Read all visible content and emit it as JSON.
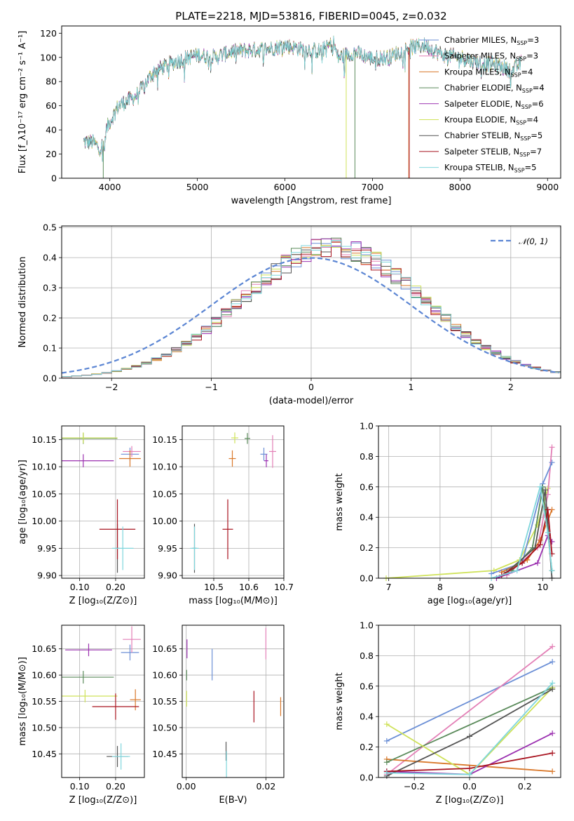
{
  "chart_data": [
    {
      "id": "spectrum",
      "type": "line",
      "title": "PLATE=2218, MJD=53816, FIBERID=0045, z=0.032",
      "xlabel": "wavelength [Angstrom, rest frame]",
      "ylabel": "Flux [f_λ10⁻¹⁷ erg cm⁻² s⁻¹ A⁻¹]",
      "xlim": [
        3450,
        9150
      ],
      "ylim": [
        0,
        126
      ],
      "xticks": [
        4000,
        5000,
        6000,
        7000,
        8000,
        9000
      ],
      "yticks": [
        0,
        20,
        40,
        60,
        80,
        100,
        120
      ],
      "grid": false,
      "legend_position": "right",
      "series": [
        {
          "name": "Chabrier MILES, N_SSP=3",
          "color": "#6b8fd6"
        },
        {
          "name": "Salpeter MILES, N_SSP=3",
          "color": "#e37fb6"
        },
        {
          "name": "Kroupa MILES, N_SSP=4",
          "color": "#d9782a"
        },
        {
          "name": "Chabrier ELODIE, N_SSP=4",
          "color": "#5a8a5a"
        },
        {
          "name": "Salpeter ELODIE, N_SSP=6",
          "color": "#9b30b0"
        },
        {
          "name": "Kroupa ELODIE, N_SSP=4",
          "color": "#cfe25a"
        },
        {
          "name": "Chabrier STELIB, N_SSP=5",
          "color": "#555555"
        },
        {
          "name": "Salpeter STELIB, N_SSP=7",
          "color": "#a8131f"
        },
        {
          "name": "Kroupa STELIB, N_SSP=5",
          "color": "#7fd6dc"
        }
      ],
      "continuum": {
        "x": [
          3700,
          3800,
          3900,
          3950,
          4000,
          4100,
          4200,
          4300,
          4400,
          4500,
          4700,
          4900,
          5000,
          5200,
          5400,
          5600,
          5800,
          6000,
          6200,
          6400,
          6560,
          6600,
          6800,
          7000,
          7200,
          7400,
          7600,
          7800,
          8000,
          8200,
          8400,
          8600,
          8700
        ],
        "y": [
          30,
          30,
          24,
          38,
          47,
          60,
          64,
          68,
          78,
          88,
          95,
          100,
          102,
          100,
          105,
          106,
          107,
          110,
          107,
          105,
          112,
          100,
          104,
          99,
          100,
          108,
          110,
          102,
          100,
          96,
          94,
          89,
          96
        ]
      }
    },
    {
      "id": "residuals",
      "type": "line",
      "xlabel": "(data-model)/error",
      "ylabel": "Normed distribution",
      "xlim": [
        -2.5,
        2.5
      ],
      "ylim": [
        0,
        0.505
      ],
      "xticks": [
        -2,
        -1,
        0,
        1,
        2
      ],
      "yticks": [
        0.0,
        0.1,
        0.2,
        0.3,
        0.4,
        0.5
      ],
      "grid": true,
      "legend_position": "top-right",
      "reference": {
        "name": "𝒩(0, 1)",
        "mu": 0,
        "sigma": 1,
        "color": "#5b85d3"
      },
      "hist_shape": {
        "mu": 0.22,
        "sigma": 0.9,
        "bin_width": 0.1
      }
    },
    {
      "id": "age-vs-z",
      "type": "scatter",
      "xlabel": "Z [log₁₀(Z/Z⊙)]",
      "ylabel": "age  [log₁₀(age/yr)]",
      "xlim": [
        0.05,
        0.28
      ],
      "ylim": [
        9.895,
        10.175
      ],
      "xticks": [
        0.1,
        0.2
      ],
      "yticks": [
        9.9,
        9.95,
        10.0,
        10.05,
        10.1,
        10.15
      ],
      "grid": true,
      "points": [
        {
          "color": "#6b8fd6",
          "x": 0.24,
          "xerr": 0.025,
          "y": 10.123,
          "yerr": 0.012
        },
        {
          "color": "#e37fb6",
          "x": 0.245,
          "xerr": 0.025,
          "y": 10.128,
          "yerr": 0.01
        },
        {
          "color": "#d9782a",
          "x": 0.24,
          "xerr": 0.03,
          "y": 10.115,
          "yerr": 0.015
        },
        {
          "color": "#5a8a5a",
          "x": 0.11,
          "xerr": 0.095,
          "y": 10.152,
          "yerr": 0.01
        },
        {
          "color": "#9b30b0",
          "x": 0.11,
          "xerr": 0.085,
          "y": 10.111,
          "yerr": 0.012
        },
        {
          "color": "#cfe25a",
          "x": 0.11,
          "xerr": 0.095,
          "y": 10.153,
          "yerr": 0.01
        },
        {
          "color": "#555555",
          "x": 0.205,
          "xerr": 0.005,
          "y": 9.95,
          "yerr": 0.045
        },
        {
          "color": "#a8131f",
          "x": 0.205,
          "xerr": 0.05,
          "y": 9.985,
          "yerr": 0.055
        },
        {
          "color": "#7fd6dc",
          "x": 0.22,
          "xerr": 0.03,
          "y": 9.95,
          "yerr": 0.04
        }
      ]
    },
    {
      "id": "age-vs-mass",
      "type": "scatter",
      "xlabel": "mass [log₁₀(M/M⊙)]",
      "ylabel": "",
      "xlim": [
        10.41,
        10.7
      ],
      "ylim": [
        9.895,
        10.175
      ],
      "xticks": [
        10.5,
        10.6,
        10.7
      ],
      "xticklabels": [
        "10.5",
        "10.6",
        "10.7"
      ],
      "yticks": [
        9.9,
        9.95,
        10.0,
        10.05,
        10.1,
        10.15
      ],
      "grid": true,
      "points": [
        {
          "color": "#6b8fd6",
          "x": 10.643,
          "xerr": 0.01,
          "y": 10.123,
          "yerr": 0.012
        },
        {
          "color": "#e37fb6",
          "x": 10.668,
          "xerr": 0.01,
          "y": 10.128,
          "yerr": 0.03
        },
        {
          "color": "#d9782a",
          "x": 10.553,
          "xerr": 0.01,
          "y": 10.115,
          "yerr": 0.015
        },
        {
          "color": "#5a8a5a",
          "x": 10.596,
          "xerr": 0.008,
          "y": 10.152,
          "yerr": 0.01
        },
        {
          "color": "#9b30b0",
          "x": 10.65,
          "xerr": 0.006,
          "y": 10.111,
          "yerr": 0.012
        },
        {
          "color": "#cfe25a",
          "x": 10.56,
          "xerr": 0.01,
          "y": 10.153,
          "yerr": 0.01
        },
        {
          "color": "#555555",
          "x": 10.445,
          "xerr": 0.006,
          "y": 9.95,
          "yerr": 0.045
        },
        {
          "color": "#a8131f",
          "x": 10.54,
          "xerr": 0.015,
          "y": 9.985,
          "yerr": 0.055
        },
        {
          "color": "#7fd6dc",
          "x": 10.445,
          "xerr": 0.012,
          "y": 9.95,
          "yerr": 0.04
        }
      ]
    },
    {
      "id": "mass-weight-vs-age",
      "type": "line",
      "xlabel": "age  [log₁₀(age/yr)]",
      "ylabel": "mass weight",
      "xlim": [
        6.8,
        10.35
      ],
      "ylim": [
        0,
        1
      ],
      "xticks": [
        7,
        8,
        9,
        10
      ],
      "yticks": [
        0.0,
        0.2,
        0.4,
        0.6,
        0.8,
        1.0
      ],
      "grid": true,
      "series": [
        {
          "color": "#cfe25a",
          "x": [
            6.95,
            9.05,
            9.55,
            9.9,
            10.1
          ],
          "y": [
            0.0,
            0.05,
            0.12,
            0.35,
            0.59
          ]
        },
        {
          "color": "#e37fb6",
          "x": [
            9.3,
            9.9,
            10.1,
            10.18
          ],
          "y": [
            0.02,
            0.2,
            0.55,
            0.86
          ]
        },
        {
          "color": "#6b8fd6",
          "x": [
            9.0,
            9.6,
            10.0,
            10.18
          ],
          "y": [
            0.03,
            0.1,
            0.62,
            0.76
          ]
        },
        {
          "color": "#d9782a",
          "x": [
            9.2,
            9.7,
            9.95,
            10.18
          ],
          "y": [
            0.04,
            0.12,
            0.25,
            0.45
          ]
        },
        {
          "color": "#5a8a5a",
          "x": [
            9.4,
            9.8,
            10.0,
            10.18
          ],
          "y": [
            0.05,
            0.2,
            0.6,
            0.05
          ]
        },
        {
          "color": "#9b30b0",
          "x": [
            9.1,
            9.9,
            10.1,
            10.18
          ],
          "y": [
            0.0,
            0.1,
            0.28,
            0.24
          ]
        },
        {
          "color": "#555555",
          "x": [
            9.3,
            9.85,
            10.05,
            10.18
          ],
          "y": [
            0.04,
            0.2,
            0.58,
            0.0
          ]
        },
        {
          "color": "#a8131f",
          "x": [
            9.2,
            9.6,
            9.95,
            10.1,
            10.18
          ],
          "y": [
            0.02,
            0.1,
            0.22,
            0.45,
            0.16
          ]
        },
        {
          "color": "#7fd6dc",
          "x": [
            9.0,
            9.5,
            9.95,
            10.1,
            10.18
          ],
          "y": [
            0.0,
            0.05,
            0.6,
            0.3,
            0.05
          ]
        }
      ]
    },
    {
      "id": "mass-vs-z",
      "type": "scatter",
      "xlabel": "Z [log₁₀(Z/Z⊙)]",
      "ylabel": "mass [log₁₀(M/M⊙)]",
      "xlim": [
        0.05,
        0.28
      ],
      "ylim": [
        10.405,
        10.695
      ],
      "xticks": [
        0.1,
        0.2
      ],
      "yticks": [
        10.45,
        10.5,
        10.55,
        10.6,
        10.65
      ],
      "grid": true,
      "points": [
        {
          "color": "#6b8fd6",
          "x": 0.24,
          "xerr": 0.025,
          "y": 10.643,
          "yerr": 0.015
        },
        {
          "color": "#e37fb6",
          "x": 0.245,
          "xerr": 0.025,
          "y": 10.668,
          "yerr": 0.025
        },
        {
          "color": "#d9782a",
          "x": 0.255,
          "xerr": 0.015,
          "y": 10.553,
          "yerr": 0.02
        },
        {
          "color": "#5a8a5a",
          "x": 0.11,
          "xerr": 0.085,
          "y": 10.596,
          "yerr": 0.012
        },
        {
          "color": "#9b30b0",
          "x": 0.125,
          "xerr": 0.065,
          "y": 10.648,
          "yerr": 0.012
        },
        {
          "color": "#cfe25a",
          "x": 0.115,
          "xerr": 0.09,
          "y": 10.56,
          "yerr": 0.012
        },
        {
          "color": "#555555",
          "x": 0.205,
          "xerr": 0.03,
          "y": 10.445,
          "yerr": 0.02
        },
        {
          "color": "#a8131f",
          "x": 0.2,
          "xerr": 0.065,
          "y": 10.54,
          "yerr": 0.025
        },
        {
          "color": "#7fd6dc",
          "x": 0.215,
          "xerr": 0.025,
          "y": 10.445,
          "yerr": 0.025
        }
      ]
    },
    {
      "id": "mass-vs-ebv",
      "type": "scatter",
      "xlabel": "E(B-V)",
      "ylabel": "",
      "xlim": [
        -0.001,
        0.0245
      ],
      "ylim": [
        10.405,
        10.695
      ],
      "xticks": [
        0.0,
        0.02
      ],
      "xticklabels": [
        "0.00",
        "0.02"
      ],
      "yticks": [
        10.45,
        10.5,
        10.55,
        10.6,
        10.65
      ],
      "grid": true,
      "points": [
        {
          "color": "#6b8fd6",
          "x": 0.0065,
          "xerr": 0,
          "y": 10.62,
          "yerr": 0.03
        },
        {
          "color": "#e37fb6",
          "x": 0.02,
          "xerr": 0,
          "y": 10.66,
          "yerr": 0.03
        },
        {
          "color": "#d9782a",
          "x": 0.0237,
          "xerr": 0,
          "y": 10.54,
          "yerr": 0.018
        },
        {
          "color": "#5a8a5a",
          "x": 0.0001,
          "xerr": 0,
          "y": 10.6,
          "yerr": 0.01
        },
        {
          "color": "#9b30b0",
          "x": 0.0002,
          "xerr": 0,
          "y": 10.65,
          "yerr": 0.018
        },
        {
          "color": "#cfe25a",
          "x": 0.0001,
          "xerr": 0,
          "y": 10.555,
          "yerr": 0.015
        },
        {
          "color": "#555555",
          "x": 0.01,
          "xerr": 0,
          "y": 10.455,
          "yerr": 0.018
        },
        {
          "color": "#a8131f",
          "x": 0.017,
          "xerr": 0,
          "y": 10.54,
          "yerr": 0.03
        },
        {
          "color": "#7fd6dc",
          "x": 0.0101,
          "xerr": 0,
          "y": 10.43,
          "yerr": 0.025
        }
      ]
    },
    {
      "id": "mass-weight-vs-z",
      "type": "line",
      "xlabel": "Z [log₁₀(Z/Z⊙)]",
      "ylabel": "mass weight",
      "xlim": [
        -0.33,
        0.33
      ],
      "ylim": [
        0,
        1
      ],
      "xticks": [
        -0.2,
        0.0,
        0.2
      ],
      "yticks": [
        0.0,
        0.2,
        0.4,
        0.6,
        0.8,
        1.0
      ],
      "grid": true,
      "series": [
        {
          "color": "#6b8fd6",
          "x": [
            -0.3,
            0.3
          ],
          "y": [
            0.24,
            0.76
          ]
        },
        {
          "color": "#e37fb6",
          "x": [
            -0.3,
            0.3
          ],
          "y": [
            0.02,
            0.86
          ]
        },
        {
          "color": "#d9782a",
          "x": [
            -0.3,
            0.3
          ],
          "y": [
            0.12,
            0.04
          ]
        },
        {
          "color": "#5a8a5a",
          "x": [
            -0.3,
            0.3
          ],
          "y": [
            0.1,
            0.59
          ]
        },
        {
          "color": "#9b30b0",
          "x": [
            -0.3,
            0.0,
            0.3
          ],
          "y": [
            0.04,
            0.02,
            0.29
          ]
        },
        {
          "color": "#cfe25a",
          "x": [
            -0.3,
            0.0,
            0.3
          ],
          "y": [
            0.35,
            0.02,
            0.59
          ]
        },
        {
          "color": "#555555",
          "x": [
            -0.3,
            0.0,
            0.3
          ],
          "y": [
            0.01,
            0.27,
            0.58
          ]
        },
        {
          "color": "#a8131f",
          "x": [
            -0.3,
            0.0,
            0.3
          ],
          "y": [
            0.04,
            0.06,
            0.16
          ]
        },
        {
          "color": "#7fd6dc",
          "x": [
            -0.3,
            0.0,
            0.3
          ],
          "y": [
            0.03,
            0.02,
            0.62
          ]
        }
      ]
    }
  ]
}
